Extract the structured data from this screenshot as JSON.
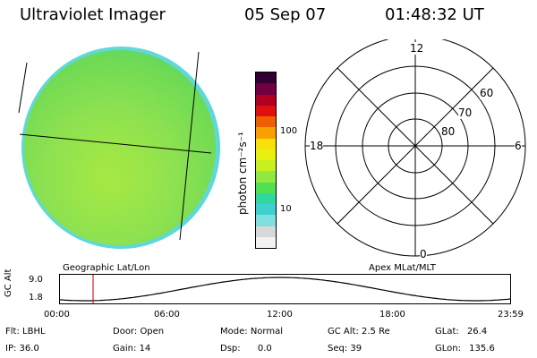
{
  "header": {
    "title": "Ultraviolet Imager",
    "date": "05 Sep 07",
    "time": "01:48:32 UT"
  },
  "image_panel": {
    "caption": "Geographic Lat/Lon"
  },
  "colorbar": {
    "unit_label": "photon cm⁻²s⁻¹",
    "ticks": [
      "100",
      "10"
    ],
    "scale": "log",
    "colors": [
      "#f2f2f2",
      "#d8d8d8",
      "#7fe0e0",
      "#40d0d0",
      "#30d8a0",
      "#50e050",
      "#90e840",
      "#c8f020",
      "#e8f010",
      "#f8e008",
      "#f8a000",
      "#f06000",
      "#e01010",
      "#b00020",
      "#700040",
      "#300030"
    ]
  },
  "polar_panel": {
    "caption": "Apex MLat/MLT",
    "mlt_labels": {
      "top": "12",
      "left": "18",
      "right": "6",
      "bottom": "0"
    },
    "lat_labels": [
      "60",
      "70",
      "80"
    ]
  },
  "altitude_plot": {
    "ylabel": "GC Alt",
    "yticks": [
      "9.0",
      "1.8"
    ],
    "xticks": [
      "00:00",
      "06:00",
      "12:00",
      "18:00",
      "23:59"
    ],
    "marker_time": "01:48:32",
    "marker_color": "#d02020"
  },
  "status": {
    "flt": {
      "label": "Flt:",
      "value": "LBHL"
    },
    "ip": {
      "label": "IP:",
      "value": "36.0"
    },
    "door": {
      "label": "Door:",
      "value": "Open"
    },
    "gain": {
      "label": "Gain:",
      "value": "14"
    },
    "mode": {
      "label": "Mode:",
      "value": "Normal"
    },
    "dsp": {
      "label": "Dsp:",
      "value": "0.0"
    },
    "gcalt": {
      "label": "GC Alt:",
      "value": "2.5 Re"
    },
    "seq": {
      "label": "Seq:",
      "value": "39"
    },
    "glat": {
      "label": "GLat:",
      "value": "26.4"
    },
    "glon": {
      "label": "GLon:",
      "value": "135.6"
    }
  }
}
